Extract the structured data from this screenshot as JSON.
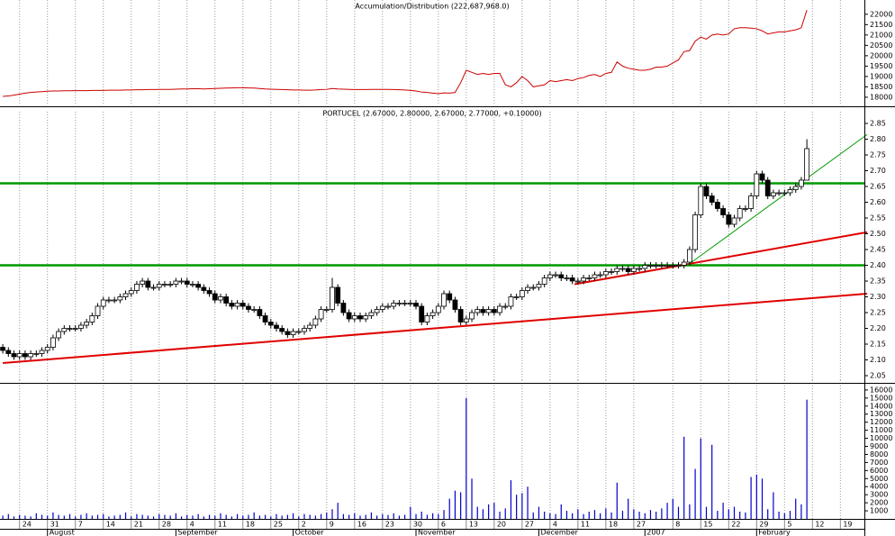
{
  "chart_data": [
    {
      "type": "line",
      "title": "Accumulation/Distribution (222,687,968.0)",
      "color": "#cc0000",
      "ylim": [
        17650,
        22600
      ],
      "yticks": [
        18000,
        18500,
        19000,
        19500,
        20000,
        20500,
        21000,
        21500,
        22000
      ],
      "values": [
        18040,
        18060,
        18100,
        18150,
        18200,
        18230,
        18250,
        18270,
        18290,
        18300,
        18300,
        18310,
        18310,
        18320,
        18320,
        18320,
        18330,
        18330,
        18330,
        18340,
        18340,
        18340,
        18350,
        18350,
        18360,
        18360,
        18370,
        18370,
        18380,
        18380,
        18380,
        18390,
        18400,
        18400,
        18410,
        18410,
        18400,
        18410,
        18420,
        18430,
        18440,
        18450,
        18460,
        18460,
        18450,
        18440,
        18420,
        18400,
        18390,
        18380,
        18370,
        18360,
        18350,
        18350,
        18340,
        18340,
        18350,
        18370,
        18380,
        18420,
        18400,
        18390,
        18380,
        18370,
        18370,
        18370,
        18380,
        18380,
        18380,
        18380,
        18370,
        18360,
        18350,
        18330,
        18300,
        18250,
        18230,
        18200,
        18170,
        18210,
        18200,
        18230,
        18700,
        19300,
        19200,
        19100,
        19150,
        19100,
        19150,
        19150,
        18600,
        18500,
        18700,
        19000,
        18800,
        18500,
        18550,
        18600,
        18800,
        18750,
        18800,
        18850,
        18800,
        18900,
        18950,
        19050,
        19100,
        19000,
        19150,
        19200,
        19700,
        19500,
        19400,
        19350,
        19300,
        19300,
        19350,
        19450,
        19450,
        19500,
        19650,
        19800,
        20200,
        20250,
        20700,
        20900,
        20800,
        21000,
        21050,
        21000,
        21050,
        21300,
        21350,
        21350,
        21330,
        21300,
        21200,
        21050,
        21100,
        21150,
        21150,
        21200,
        21250,
        21350,
        22200
      ]
    },
    {
      "type": "candlestick",
      "title": "PORTUCEL (2.67000, 2.80000, 2.67000, 2.77000, +0.10000)",
      "up_color": "#ffffff",
      "down_color": "#000000",
      "ylim": [
        2.03,
        2.87
      ],
      "yticks": [
        2.05,
        {
          "value": 2.1,
          "label": "2.10"
        },
        2.15,
        {
          "value": 2.2,
          "label": "2.20"
        },
        2.25,
        {
          "value": 2.3,
          "label": "2.30"
        },
        2.35,
        {
          "value": 2.4,
          "label": "2.40"
        },
        2.45,
        {
          "value": 2.5,
          "label": "2.50"
        },
        2.55,
        {
          "value": 2.6,
          "label": "2.60"
        },
        2.65,
        {
          "value": 2.7,
          "label": "2.70"
        },
        2.75,
        {
          "value": 2.8,
          "label": "2.80"
        },
        2.85
      ],
      "open": [
        2.14,
        2.13,
        2.12,
        2.11,
        2.12,
        2.11,
        2.12,
        2.12,
        2.13,
        2.14,
        2.17,
        2.19,
        2.2,
        2.2,
        2.2,
        2.21,
        2.22,
        2.24,
        2.27,
        2.29,
        2.29,
        2.29,
        2.3,
        2.31,
        2.32,
        2.34,
        2.35,
        2.33,
        2.33,
        2.34,
        2.34,
        2.34,
        2.35,
        2.35,
        2.34,
        2.34,
        2.33,
        2.32,
        2.31,
        2.29,
        2.3,
        2.28,
        2.27,
        2.28,
        2.27,
        2.26,
        2.26,
        2.24,
        2.22,
        2.21,
        2.2,
        2.19,
        2.18,
        2.19,
        2.19,
        2.2,
        2.21,
        2.23,
        2.26,
        2.26,
        2.33,
        2.28,
        2.25,
        2.23,
        2.24,
        2.23,
        2.24,
        2.25,
        2.26,
        2.27,
        2.27,
        2.28,
        2.28,
        2.28,
        2.28,
        2.27,
        2.22,
        2.24,
        2.25,
        2.27,
        2.31,
        2.29,
        2.26,
        2.22,
        2.23,
        2.25,
        2.26,
        2.25,
        2.26,
        2.25,
        2.27,
        2.27,
        2.3,
        2.3,
        2.32,
        2.33,
        2.33,
        2.34,
        2.36,
        2.37,
        2.37,
        2.36,
        2.36,
        2.35,
        2.35,
        2.36,
        2.36,
        2.37,
        2.37,
        2.38,
        2.38,
        2.39,
        2.39,
        2.38,
        2.39,
        2.39,
        2.4,
        2.4,
        2.4,
        2.4,
        2.4,
        2.4,
        2.4,
        2.41,
        2.45,
        2.56,
        2.65,
        2.62,
        2.6,
        2.58,
        2.56,
        2.53,
        2.55,
        2.58,
        2.58,
        2.62,
        2.69,
        2.67,
        2.62,
        2.63,
        2.63,
        2.63,
        2.64,
        2.65,
        2.67
      ],
      "high": [
        2.15,
        2.14,
        2.13,
        2.13,
        2.13,
        2.13,
        2.13,
        2.14,
        2.15,
        2.18,
        2.2,
        2.21,
        2.21,
        2.21,
        2.22,
        2.23,
        2.25,
        2.28,
        2.3,
        2.3,
        2.3,
        2.31,
        2.32,
        2.33,
        2.35,
        2.36,
        2.36,
        2.34,
        2.35,
        2.35,
        2.35,
        2.36,
        2.36,
        2.36,
        2.35,
        2.35,
        2.34,
        2.33,
        2.32,
        2.31,
        2.31,
        2.29,
        2.29,
        2.29,
        2.28,
        2.27,
        2.27,
        2.25,
        2.23,
        2.22,
        2.21,
        2.2,
        2.2,
        2.2,
        2.21,
        2.22,
        2.24,
        2.27,
        2.27,
        2.36,
        2.34,
        2.29,
        2.26,
        2.25,
        2.25,
        2.25,
        2.26,
        2.27,
        2.28,
        2.28,
        2.29,
        2.29,
        2.29,
        2.29,
        2.29,
        2.28,
        2.25,
        2.26,
        2.28,
        2.32,
        2.32,
        2.3,
        2.27,
        2.24,
        2.26,
        2.27,
        2.27,
        2.27,
        2.27,
        2.28,
        2.28,
        2.31,
        2.31,
        2.33,
        2.34,
        2.34,
        2.35,
        2.37,
        2.38,
        2.38,
        2.38,
        2.37,
        2.37,
        2.36,
        2.37,
        2.37,
        2.38,
        2.38,
        2.39,
        2.39,
        2.4,
        2.4,
        2.4,
        2.4,
        2.4,
        2.41,
        2.41,
        2.41,
        2.41,
        2.41,
        2.41,
        2.41,
        2.42,
        2.46,
        2.57,
        2.66,
        2.66,
        2.63,
        2.61,
        2.59,
        2.57,
        2.56,
        2.59,
        2.59,
        2.63,
        2.7,
        2.7,
        2.68,
        2.64,
        2.64,
        2.64,
        2.65,
        2.66,
        2.68,
        2.8
      ],
      "low": [
        2.12,
        2.11,
        2.1,
        2.1,
        2.1,
        2.1,
        2.11,
        2.11,
        2.12,
        2.13,
        2.16,
        2.18,
        2.19,
        2.19,
        2.19,
        2.2,
        2.21,
        2.23,
        2.26,
        2.28,
        2.28,
        2.28,
        2.29,
        2.3,
        2.31,
        2.33,
        2.32,
        2.32,
        2.32,
        2.33,
        2.33,
        2.33,
        2.34,
        2.33,
        2.33,
        2.32,
        2.31,
        2.3,
        2.28,
        2.28,
        2.27,
        2.26,
        2.26,
        2.26,
        2.25,
        2.25,
        2.23,
        2.21,
        2.2,
        2.19,
        2.18,
        2.17,
        2.17,
        2.18,
        2.18,
        2.19,
        2.2,
        2.22,
        2.25,
        2.25,
        2.27,
        2.24,
        2.22,
        2.22,
        2.22,
        2.22,
        2.23,
        2.24,
        2.25,
        2.26,
        2.26,
        2.27,
        2.27,
        2.27,
        2.26,
        2.21,
        2.21,
        2.23,
        2.24,
        2.26,
        2.28,
        2.25,
        2.21,
        2.21,
        2.22,
        2.24,
        2.24,
        2.24,
        2.24,
        2.24,
        2.26,
        2.26,
        2.29,
        2.29,
        2.31,
        2.32,
        2.32,
        2.33,
        2.35,
        2.36,
        2.35,
        2.35,
        2.34,
        2.34,
        2.34,
        2.35,
        2.35,
        2.36,
        2.36,
        2.37,
        2.37,
        2.38,
        2.37,
        2.37,
        2.38,
        2.38,
        2.39,
        2.39,
        2.39,
        2.39,
        2.39,
        2.39,
        2.39,
        2.4,
        2.44,
        2.55,
        2.61,
        2.59,
        2.57,
        2.55,
        2.52,
        2.52,
        2.54,
        2.57,
        2.57,
        2.61,
        2.66,
        2.61,
        2.61,
        2.62,
        2.62,
        2.62,
        2.63,
        2.64,
        2.67
      ],
      "close": [
        2.13,
        2.12,
        2.11,
        2.12,
        2.11,
        2.12,
        2.12,
        2.13,
        2.14,
        2.17,
        2.19,
        2.2,
        2.2,
        2.2,
        2.21,
        2.22,
        2.24,
        2.27,
        2.29,
        2.29,
        2.29,
        2.3,
        2.31,
        2.32,
        2.34,
        2.35,
        2.33,
        2.33,
        2.34,
        2.34,
        2.34,
        2.35,
        2.35,
        2.34,
        2.34,
        2.33,
        2.32,
        2.31,
        2.29,
        2.3,
        2.28,
        2.27,
        2.28,
        2.27,
        2.26,
        2.26,
        2.24,
        2.22,
        2.21,
        2.2,
        2.19,
        2.18,
        2.19,
        2.19,
        2.2,
        2.21,
        2.23,
        2.26,
        2.26,
        2.33,
        2.28,
        2.25,
        2.23,
        2.24,
        2.23,
        2.24,
        2.25,
        2.26,
        2.27,
        2.27,
        2.28,
        2.28,
        2.28,
        2.28,
        2.27,
        2.22,
        2.24,
        2.25,
        2.27,
        2.31,
        2.29,
        2.26,
        2.22,
        2.23,
        2.25,
        2.26,
        2.25,
        2.26,
        2.25,
        2.27,
        2.27,
        2.3,
        2.3,
        2.32,
        2.33,
        2.33,
        2.34,
        2.36,
        2.37,
        2.37,
        2.36,
        2.36,
        2.35,
        2.35,
        2.36,
        2.36,
        2.37,
        2.37,
        2.38,
        2.38,
        2.39,
        2.39,
        2.38,
        2.39,
        2.39,
        2.4,
        2.4,
        2.4,
        2.4,
        2.4,
        2.4,
        2.4,
        2.41,
        2.45,
        2.56,
        2.65,
        2.62,
        2.6,
        2.58,
        2.56,
        2.53,
        2.55,
        2.58,
        2.58,
        2.62,
        2.69,
        2.67,
        2.62,
        2.63,
        2.63,
        2.63,
        2.64,
        2.65,
        2.67,
        2.77
      ],
      "hlines": [
        {
          "value": 2.66,
          "color": "#009900"
        },
        {
          "value": 2.4,
          "color": "#009900"
        }
      ],
      "trendlines": [
        {
          "color": "#e00000",
          "x": [
            0,
            154.8
          ],
          "y": [
            2.09,
            2.31
          ]
        },
        {
          "color": "#e00000",
          "x": [
            102.4,
            154.8
          ],
          "y": [
            2.34,
            2.505
          ]
        },
        {
          "color": "#009900",
          "x": [
            122.6,
            154.8
          ],
          "y": [
            2.4,
            2.815
          ]
        }
      ]
    },
    {
      "type": "bar",
      "color": "#0000cc",
      "ylim": [
        0,
        16550
      ],
      "yticks": [
        1000,
        2000,
        3000,
        4000,
        5000,
        6000,
        7000,
        8000,
        9000,
        10000,
        11000,
        12000,
        13000,
        14000,
        15000,
        16000
      ],
      "values": [
        400,
        600,
        300,
        500,
        400,
        300,
        700,
        500,
        400,
        800,
        500,
        400,
        600,
        300,
        500,
        700,
        400,
        500,
        600,
        300,
        400,
        500,
        800,
        300,
        600,
        500,
        400,
        300,
        600,
        500,
        400,
        700,
        300,
        500,
        400,
        600,
        300,
        500,
        400,
        700,
        500,
        300,
        600,
        400,
        500,
        800,
        400,
        500,
        300,
        600,
        400,
        500,
        700,
        300,
        600,
        500,
        400,
        600,
        800,
        1200,
        2000,
        600,
        500,
        700,
        400,
        500,
        800,
        400,
        600,
        500,
        700,
        400,
        500,
        1500,
        600,
        900,
        500,
        700,
        600,
        1100,
        2500,
        3500,
        3300,
        15000,
        5000,
        1500,
        1200,
        1800,
        2000,
        900,
        1300,
        4800,
        3000,
        3200,
        4000,
        800,
        1500,
        900,
        700,
        600,
        1800,
        1000,
        700,
        1200,
        600,
        900,
        1100,
        700,
        1300,
        800,
        4500,
        1000,
        2500,
        1200,
        900,
        700,
        1100,
        900,
        1300,
        2000,
        2500,
        1500,
        10200,
        1800,
        6200,
        10000,
        1500,
        9200,
        1000,
        2000,
        1200,
        1500,
        900,
        800,
        5200,
        5500,
        5000,
        1200,
        3300,
        900,
        700,
        1000,
        2500,
        1800,
        14800
      ],
      "xlim": [
        -0.5,
        154.3
      ],
      "xticks": [
        {
          "value": 3,
          "label": "24"
        },
        {
          "value": 8,
          "label": "31"
        },
        {
          "value": 13,
          "label": "7"
        },
        {
          "value": 18,
          "label": "14"
        },
        {
          "value": 23,
          "label": "21"
        },
        {
          "value": 28,
          "label": "28"
        },
        {
          "value": 33,
          "label": "4"
        },
        {
          "value": 38,
          "label": "11"
        },
        {
          "value": 43,
          "label": "18"
        },
        {
          "value": 48,
          "label": "25"
        },
        {
          "value": 53,
          "label": "2"
        },
        {
          "value": 58,
          "label": "9"
        },
        {
          "value": 63,
          "label": "16"
        },
        {
          "value": 68,
          "label": "23"
        },
        {
          "value": 73,
          "label": "30"
        },
        {
          "value": 78,
          "label": "6"
        },
        {
          "value": 83,
          "label": "13"
        },
        {
          "value": 88,
          "label": "20"
        },
        {
          "value": 93,
          "label": "27"
        },
        {
          "value": 98,
          "label": "4"
        },
        {
          "value": 103,
          "label": "11"
        },
        {
          "value": 108,
          "label": "18"
        },
        {
          "value": 113,
          "label": "27"
        },
        {
          "value": 120,
          "label": "8"
        },
        {
          "value": 125,
          "label": "15"
        },
        {
          "value": 130,
          "label": "22"
        },
        {
          "value": 135,
          "label": "29"
        },
        {
          "value": 140,
          "label": "5"
        },
        {
          "value": 145,
          "label": "12"
        },
        {
          "value": 150,
          "label": "19"
        }
      ],
      "month_ticks": [
        {
          "value": 8,
          "label": "August"
        },
        {
          "value": 31,
          "label": "September"
        },
        {
          "value": 52,
          "label": "October"
        },
        {
          "value": 74,
          "label": "November"
        },
        {
          "value": 96,
          "label": "December"
        },
        {
          "value": 115,
          "label": "2007"
        },
        {
          "value": 135,
          "label": "February"
        }
      ],
      "xgrid": true
    }
  ]
}
